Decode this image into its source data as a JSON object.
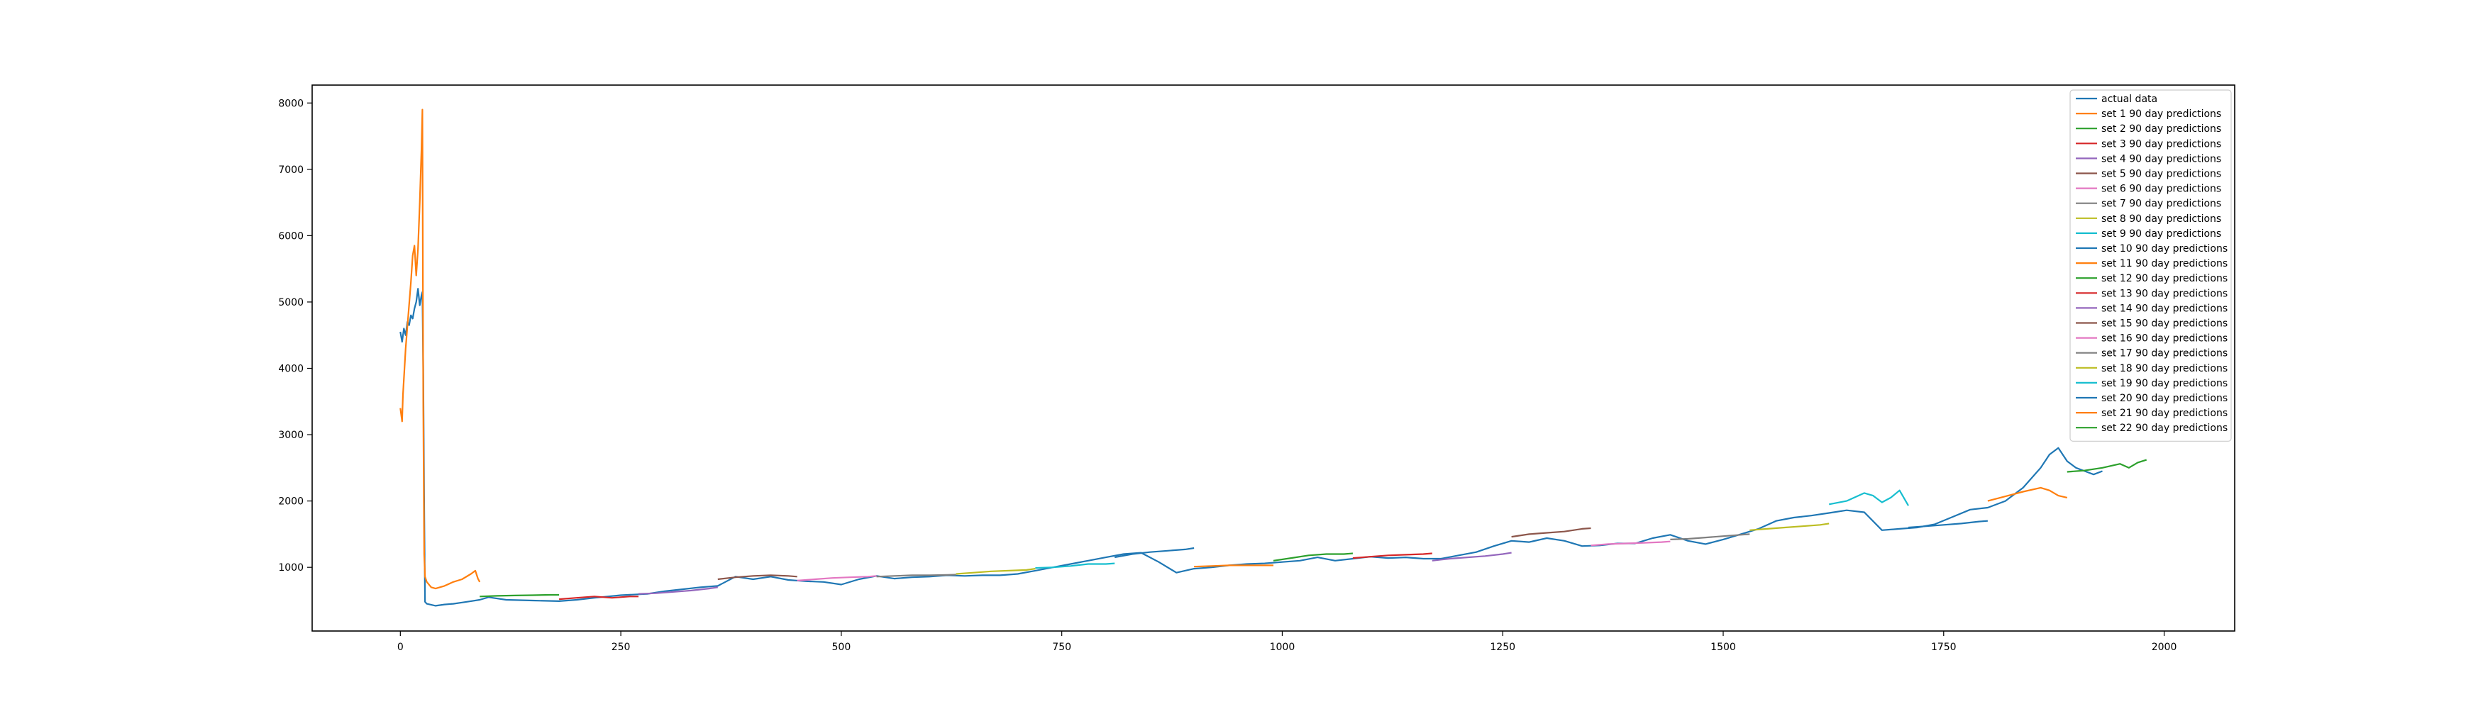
{
  "chart_data": {
    "type": "line",
    "title": "",
    "xlabel": "",
    "ylabel": "",
    "xlim": [
      -100,
      2080
    ],
    "ylim": [
      40,
      8270
    ],
    "xticks": [
      0,
      250,
      500,
      750,
      1000,
      1250,
      1500,
      1750,
      2000
    ],
    "yticks": [
      1000,
      2000,
      3000,
      4000,
      5000,
      6000,
      7000,
      8000
    ],
    "grid": false,
    "legend_position": "top-right",
    "series": [
      {
        "name": "actual data",
        "color": "#1f77b4",
        "kind": "actual",
        "points": [
          [
            0,
            4550
          ],
          [
            2,
            4400
          ],
          [
            4,
            4600
          ],
          [
            6,
            4500
          ],
          [
            8,
            4700
          ],
          [
            10,
            4650
          ],
          [
            12,
            4800
          ],
          [
            14,
            4750
          ],
          [
            16,
            4900
          ],
          [
            18,
            5000
          ],
          [
            20,
            5200
          ],
          [
            22,
            4950
          ],
          [
            24,
            5100
          ],
          [
            25,
            5150
          ],
          [
            26,
            4000
          ],
          [
            27,
            2000
          ],
          [
            28,
            480
          ],
          [
            30,
            450
          ],
          [
            40,
            420
          ],
          [
            50,
            440
          ],
          [
            60,
            450
          ],
          [
            70,
            470
          ],
          [
            80,
            490
          ],
          [
            90,
            510
          ],
          [
            100,
            550
          ],
          [
            120,
            510
          ],
          [
            150,
            500
          ],
          [
            180,
            490
          ],
          [
            200,
            510
          ],
          [
            220,
            540
          ],
          [
            250,
            580
          ],
          [
            280,
            600
          ],
          [
            300,
            640
          ],
          [
            320,
            670
          ],
          [
            340,
            700
          ],
          [
            360,
            720
          ],
          [
            380,
            860
          ],
          [
            400,
            820
          ],
          [
            420,
            860
          ],
          [
            440,
            810
          ],
          [
            460,
            790
          ],
          [
            480,
            780
          ],
          [
            500,
            740
          ],
          [
            520,
            820
          ],
          [
            540,
            870
          ],
          [
            560,
            830
          ],
          [
            580,
            850
          ],
          [
            600,
            860
          ],
          [
            620,
            880
          ],
          [
            640,
            870
          ],
          [
            660,
            880
          ],
          [
            680,
            880
          ],
          [
            700,
            900
          ],
          [
            720,
            950
          ],
          [
            740,
            1000
          ],
          [
            760,
            1050
          ],
          [
            780,
            1100
          ],
          [
            800,
            1150
          ],
          [
            820,
            1200
          ],
          [
            840,
            1220
          ],
          [
            860,
            1080
          ],
          [
            880,
            920
          ],
          [
            900,
            980
          ],
          [
            920,
            1000
          ],
          [
            940,
            1030
          ],
          [
            960,
            1050
          ],
          [
            980,
            1060
          ],
          [
            1000,
            1080
          ],
          [
            1020,
            1100
          ],
          [
            1040,
            1150
          ],
          [
            1060,
            1100
          ],
          [
            1080,
            1130
          ],
          [
            1100,
            1160
          ],
          [
            1120,
            1140
          ],
          [
            1140,
            1150
          ],
          [
            1160,
            1130
          ],
          [
            1180,
            1130
          ],
          [
            1200,
            1180
          ],
          [
            1220,
            1230
          ],
          [
            1240,
            1320
          ],
          [
            1260,
            1400
          ],
          [
            1280,
            1380
          ],
          [
            1300,
            1440
          ],
          [
            1320,
            1400
          ],
          [
            1340,
            1320
          ],
          [
            1360,
            1330
          ],
          [
            1380,
            1360
          ],
          [
            1400,
            1360
          ],
          [
            1420,
            1440
          ],
          [
            1440,
            1490
          ],
          [
            1460,
            1400
          ],
          [
            1480,
            1350
          ],
          [
            1500,
            1420
          ],
          [
            1520,
            1500
          ],
          [
            1540,
            1580
          ],
          [
            1560,
            1700
          ],
          [
            1580,
            1750
          ],
          [
            1600,
            1780
          ],
          [
            1620,
            1820
          ],
          [
            1640,
            1860
          ],
          [
            1660,
            1830
          ],
          [
            1680,
            1560
          ],
          [
            1700,
            1580
          ],
          [
            1720,
            1600
          ],
          [
            1740,
            1650
          ],
          [
            1760,
            1760
          ],
          [
            1780,
            1870
          ],
          [
            1800,
            1900
          ],
          [
            1820,
            2000
          ],
          [
            1840,
            2200
          ],
          [
            1860,
            2500
          ],
          [
            1870,
            2700
          ],
          [
            1880,
            2800
          ],
          [
            1890,
            2600
          ],
          [
            1900,
            2500
          ],
          [
            1910,
            2450
          ],
          [
            1920,
            2400
          ],
          [
            1930,
            2450
          ]
        ]
      },
      {
        "name": "set 1 90 day predictions",
        "color": "#ff7f0e",
        "kind": "pred",
        "points": [
          [
            0,
            3400
          ],
          [
            2,
            3200
          ],
          [
            3,
            3600
          ],
          [
            6,
            4300
          ],
          [
            9,
            4800
          ],
          [
            12,
            5300
          ],
          [
            14,
            5700
          ],
          [
            16,
            5850
          ],
          [
            18,
            5400
          ],
          [
            20,
            5800
          ],
          [
            22,
            6500
          ],
          [
            24,
            7300
          ],
          [
            25,
            7900
          ],
          [
            26,
            3500
          ],
          [
            27,
            1200
          ],
          [
            28,
            860
          ],
          [
            30,
            780
          ],
          [
            35,
            700
          ],
          [
            40,
            680
          ],
          [
            50,
            720
          ],
          [
            60,
            780
          ],
          [
            70,
            820
          ],
          [
            80,
            900
          ],
          [
            85,
            950
          ],
          [
            88,
            830
          ],
          [
            90,
            780
          ]
        ]
      },
      {
        "name": "set 2 90 day predictions",
        "color": "#2ca02c",
        "kind": "pred",
        "points": [
          [
            90,
            560
          ],
          [
            110,
            570
          ],
          [
            130,
            575
          ],
          [
            150,
            580
          ],
          [
            170,
            585
          ],
          [
            180,
            585
          ]
        ]
      },
      {
        "name": "set 3 90 day predictions",
        "color": "#d62728",
        "kind": "pred",
        "points": [
          [
            180,
            520
          ],
          [
            200,
            540
          ],
          [
            220,
            560
          ],
          [
            240,
            540
          ],
          [
            260,
            560
          ],
          [
            270,
            560
          ]
        ]
      },
      {
        "name": "set 4 90 day predictions",
        "color": "#9467bd",
        "kind": "pred",
        "points": [
          [
            270,
            600
          ],
          [
            290,
            610
          ],
          [
            310,
            630
          ],
          [
            330,
            650
          ],
          [
            350,
            680
          ],
          [
            360,
            700
          ]
        ]
      },
      {
        "name": "set 5 90 day predictions",
        "color": "#8c564b",
        "kind": "pred",
        "points": [
          [
            360,
            820
          ],
          [
            380,
            850
          ],
          [
            400,
            870
          ],
          [
            420,
            880
          ],
          [
            440,
            870
          ],
          [
            450,
            860
          ]
        ]
      },
      {
        "name": "set 6 90 day predictions",
        "color": "#e377c2",
        "kind": "pred",
        "points": [
          [
            450,
            800
          ],
          [
            470,
            820
          ],
          [
            490,
            840
          ],
          [
            510,
            850
          ],
          [
            530,
            860
          ],
          [
            540,
            870
          ]
        ]
      },
      {
        "name": "set 7 90 day predictions",
        "color": "#7f7f7f",
        "kind": "pred",
        "points": [
          [
            540,
            860
          ],
          [
            560,
            870
          ],
          [
            580,
            880
          ],
          [
            600,
            880
          ],
          [
            620,
            885
          ],
          [
            630,
            890
          ]
        ]
      },
      {
        "name": "set 8 90 day predictions",
        "color": "#bcbd22",
        "kind": "pred",
        "points": [
          [
            630,
            900
          ],
          [
            650,
            920
          ],
          [
            670,
            940
          ],
          [
            690,
            950
          ],
          [
            710,
            960
          ],
          [
            720,
            980
          ]
        ]
      },
      {
        "name": "set 9 90 day predictions",
        "color": "#17becf",
        "kind": "pred",
        "points": [
          [
            720,
            990
          ],
          [
            740,
            1000
          ],
          [
            760,
            1020
          ],
          [
            780,
            1050
          ],
          [
            800,
            1050
          ],
          [
            810,
            1060
          ]
        ]
      },
      {
        "name": "set 10 90 day predictions",
        "color": "#1f77b4",
        "kind": "pred",
        "points": [
          [
            810,
            1150
          ],
          [
            830,
            1200
          ],
          [
            850,
            1230
          ],
          [
            870,
            1250
          ],
          [
            890,
            1270
          ],
          [
            900,
            1290
          ]
        ]
      },
      {
        "name": "set 11 90 day predictions",
        "color": "#ff7f0e",
        "kind": "pred",
        "points": [
          [
            900,
            1010
          ],
          [
            920,
            1020
          ],
          [
            940,
            1030
          ],
          [
            960,
            1030
          ],
          [
            980,
            1030
          ],
          [
            990,
            1030
          ]
        ]
      },
      {
        "name": "set 12 90 day predictions",
        "color": "#2ca02c",
        "kind": "pred",
        "points": [
          [
            990,
            1100
          ],
          [
            1010,
            1140
          ],
          [
            1030,
            1180
          ],
          [
            1050,
            1200
          ],
          [
            1070,
            1200
          ],
          [
            1080,
            1210
          ]
        ]
      },
      {
        "name": "set 13 90 day predictions",
        "color": "#d62728",
        "kind": "pred",
        "points": [
          [
            1080,
            1140
          ],
          [
            1100,
            1160
          ],
          [
            1120,
            1180
          ],
          [
            1140,
            1190
          ],
          [
            1160,
            1200
          ],
          [
            1170,
            1210
          ]
        ]
      },
      {
        "name": "set 14 90 day predictions",
        "color": "#9467bd",
        "kind": "pred",
        "points": [
          [
            1170,
            1100
          ],
          [
            1190,
            1130
          ],
          [
            1210,
            1150
          ],
          [
            1230,
            1170
          ],
          [
            1250,
            1200
          ],
          [
            1260,
            1220
          ]
        ]
      },
      {
        "name": "set 15 90 day predictions",
        "color": "#8c564b",
        "kind": "pred",
        "points": [
          [
            1260,
            1460
          ],
          [
            1280,
            1500
          ],
          [
            1300,
            1520
          ],
          [
            1320,
            1540
          ],
          [
            1340,
            1580
          ],
          [
            1350,
            1590
          ]
        ]
      },
      {
        "name": "set 16 90 day predictions",
        "color": "#e377c2",
        "kind": "pred",
        "points": [
          [
            1350,
            1330
          ],
          [
            1370,
            1350
          ],
          [
            1390,
            1360
          ],
          [
            1410,
            1370
          ],
          [
            1430,
            1380
          ],
          [
            1440,
            1390
          ]
        ]
      },
      {
        "name": "set 17 90 day predictions",
        "color": "#7f7f7f",
        "kind": "pred",
        "points": [
          [
            1440,
            1420
          ],
          [
            1460,
            1430
          ],
          [
            1480,
            1450
          ],
          [
            1500,
            1470
          ],
          [
            1520,
            1490
          ],
          [
            1530,
            1500
          ]
        ]
      },
      {
        "name": "set 18 90 day predictions",
        "color": "#bcbd22",
        "kind": "pred",
        "points": [
          [
            1530,
            1560
          ],
          [
            1550,
            1580
          ],
          [
            1570,
            1600
          ],
          [
            1590,
            1620
          ],
          [
            1610,
            1640
          ],
          [
            1620,
            1660
          ]
        ]
      },
      {
        "name": "set 19 90 day predictions",
        "color": "#17becf",
        "kind": "pred",
        "points": [
          [
            1620,
            1950
          ],
          [
            1640,
            2000
          ],
          [
            1660,
            2120
          ],
          [
            1670,
            2080
          ],
          [
            1680,
            1980
          ],
          [
            1690,
            2050
          ],
          [
            1700,
            2160
          ],
          [
            1710,
            1930
          ]
        ]
      },
      {
        "name": "set 20 90 day predictions",
        "color": "#1f77b4",
        "kind": "pred",
        "points": [
          [
            1710,
            1600
          ],
          [
            1730,
            1620
          ],
          [
            1750,
            1640
          ],
          [
            1770,
            1660
          ],
          [
            1790,
            1690
          ],
          [
            1800,
            1700
          ]
        ]
      },
      {
        "name": "set 21 90 day predictions",
        "color": "#ff7f0e",
        "kind": "pred",
        "points": [
          [
            1800,
            2000
          ],
          [
            1820,
            2070
          ],
          [
            1840,
            2140
          ],
          [
            1860,
            2200
          ],
          [
            1870,
            2160
          ],
          [
            1880,
            2080
          ],
          [
            1890,
            2050
          ]
        ]
      },
      {
        "name": "set 22 90 day predictions",
        "color": "#2ca02c",
        "kind": "pred",
        "points": [
          [
            1890,
            2440
          ],
          [
            1910,
            2460
          ],
          [
            1930,
            2500
          ],
          [
            1950,
            2560
          ],
          [
            1960,
            2500
          ],
          [
            1970,
            2580
          ],
          [
            1980,
            2620
          ]
        ]
      }
    ]
  }
}
